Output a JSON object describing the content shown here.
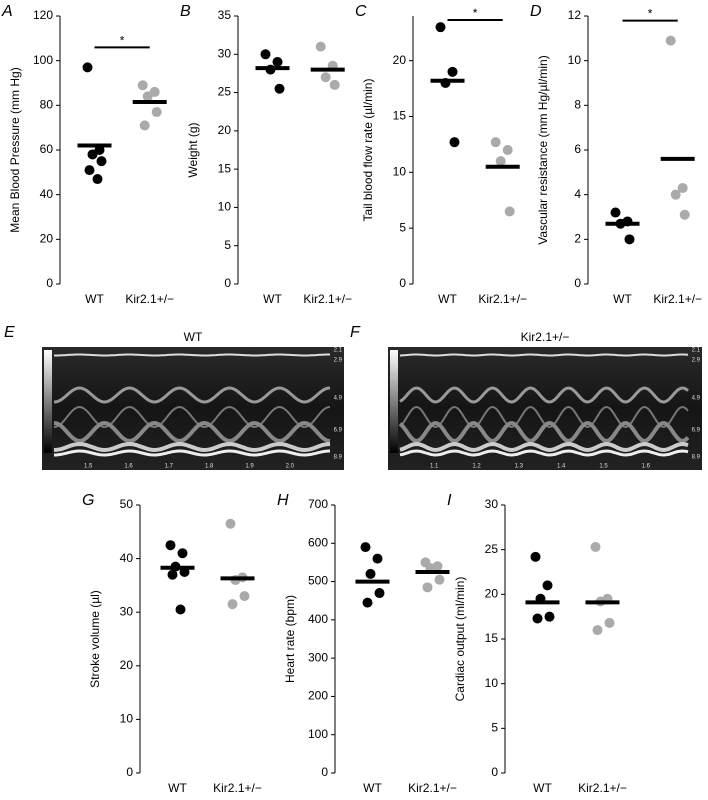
{
  "chart_data": [
    {
      "type": "dot",
      "panel": "A",
      "ylabel": "Mean Blood Pressure (mm Hg)",
      "categories": [
        "WT",
        "Kir2.1+/−"
      ],
      "ylim": [
        0,
        120
      ],
      "yticks": [
        0,
        20,
        40,
        60,
        80,
        100,
        120
      ],
      "significance": "*",
      "groups": [
        {
          "color": "#000000",
          "values": [
            97,
            60,
            58,
            55,
            51,
            47
          ],
          "mean": 62
        },
        {
          "color": "#aaaaaa",
          "values": [
            89,
            86,
            84,
            77,
            71
          ],
          "mean": 81.5
        }
      ]
    },
    {
      "type": "dot",
      "panel": "B",
      "ylabel": "Weight (g)",
      "categories": [
        "WT",
        "Kir2.1+/−"
      ],
      "ylim": [
        0,
        35
      ],
      "yticks": [
        0,
        5,
        10,
        15,
        20,
        25,
        30,
        35
      ],
      "groups": [
        {
          "color": "#000000",
          "values": [
            30,
            29,
            28,
            25.5
          ],
          "mean": 28.2
        },
        {
          "color": "#aaaaaa",
          "values": [
            31,
            28.5,
            27,
            26
          ],
          "mean": 28
        }
      ]
    },
    {
      "type": "dot",
      "panel": "C",
      "ylabel": "Tail blood flow rate (µl/min)",
      "categories": [
        "WT",
        "Kir2.1+/−"
      ],
      "ylim": [
        0,
        24
      ],
      "yticks": [
        0,
        5,
        10,
        15,
        20
      ],
      "significance": "*",
      "groups": [
        {
          "color": "#000000",
          "values": [
            23,
            19,
            18,
            12.7
          ],
          "mean": 18.2
        },
        {
          "color": "#aaaaaa",
          "values": [
            12.7,
            12,
            11,
            6.5
          ],
          "mean": 10.5
        }
      ]
    },
    {
      "type": "dot",
      "panel": "D",
      "ylabel": "Vascular resistance (mm Hg/µl/min)",
      "categories": [
        "WT",
        "Kir2.1+/−"
      ],
      "ylim": [
        0,
        12
      ],
      "yticks": [
        0,
        2,
        4,
        6,
        8,
        10,
        12
      ],
      "significance": "*",
      "groups": [
        {
          "color": "#000000",
          "values": [
            3.2,
            2.8,
            2.7,
            2.0
          ],
          "mean": 2.7
        },
        {
          "color": "#aaaaaa",
          "values": [
            10.9,
            4.3,
            4.0,
            3.1
          ],
          "mean": 5.6
        }
      ]
    },
    {
      "type": "dot",
      "panel": "G",
      "ylabel": "Stroke volume (µl)",
      "categories": [
        "WT",
        "Kir2.1+/−"
      ],
      "ylim": [
        0,
        50
      ],
      "yticks": [
        0,
        10,
        20,
        30,
        40,
        50
      ],
      "groups": [
        {
          "color": "#000000",
          "values": [
            42.5,
            41,
            38.5,
            37.5,
            37,
            30.5
          ],
          "mean": 38.3
        },
        {
          "color": "#aaaaaa",
          "values": [
            46.5,
            36.5,
            36,
            33,
            31.5
          ],
          "mean": 36.3
        }
      ]
    },
    {
      "type": "dot",
      "panel": "H",
      "ylabel": "Heart rate (bpm)",
      "categories": [
        "WT",
        "Kir2.1+/−"
      ],
      "ylim": [
        0,
        700
      ],
      "yticks": [
        0,
        100,
        200,
        300,
        400,
        500,
        600,
        700
      ],
      "groups": [
        {
          "color": "#000000",
          "values": [
            590,
            560,
            520,
            470,
            445
          ],
          "mean": 500
        },
        {
          "color": "#aaaaaa",
          "values": [
            550,
            540,
            535,
            505,
            485
          ],
          "mean": 525
        }
      ]
    },
    {
      "type": "dot",
      "panel": "I",
      "ylabel": "Cardiac output (ml/min)",
      "categories": [
        "WT",
        "Kir2.1+/−"
      ],
      "ylim": [
        0,
        30
      ],
      "yticks": [
        0,
        5,
        10,
        15,
        20,
        25,
        30
      ],
      "groups": [
        {
          "color": "#000000",
          "values": [
            24.2,
            21,
            19.5,
            17.5,
            17.3
          ],
          "mean": 19.1
        },
        {
          "color": "#aaaaaa",
          "values": [
            25.3,
            19.5,
            19.2,
            16.8,
            16
          ],
          "mean": 19.1
        }
      ]
    }
  ],
  "images": [
    {
      "panel": "E",
      "title": "WT",
      "time_labels": [
        "1.5",
        "1.6",
        "1.7",
        "1.8",
        "1.9",
        "2.0"
      ],
      "depth_labels": [
        "2.1",
        "2.9",
        "4.9",
        "6.9",
        "8.9"
      ]
    },
    {
      "panel": "F",
      "title": "Kir2.1+/−",
      "time_labels": [
        "1.1",
        "1.2",
        "1.3",
        "1.4",
        "1.5",
        "1.6"
      ],
      "depth_labels": [
        "2.1",
        "2.9",
        "4.9",
        "6.9",
        "8.9"
      ]
    }
  ]
}
